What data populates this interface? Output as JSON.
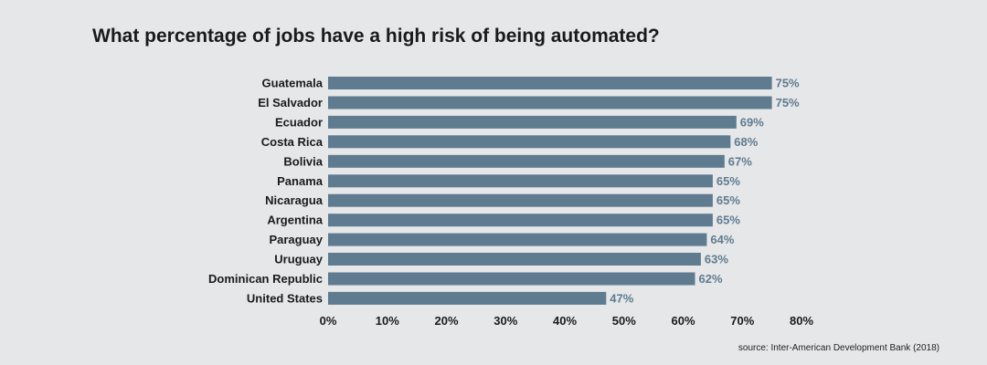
{
  "chart_data": {
    "type": "bar",
    "orientation": "horizontal",
    "title": "What percentage of jobs have a high risk of being automated?",
    "source": "source: Inter-American Development Bank (2018)",
    "categories": [
      "Guatemala",
      "El Salvador",
      "Ecuador",
      "Costa Rica",
      "Bolivia",
      "Panama",
      "Nicaragua",
      "Argentina",
      "Paraguay",
      "Uruguay",
      "Dominican Republic",
      "United States"
    ],
    "values": [
      75,
      75,
      69,
      68,
      67,
      65,
      65,
      65,
      64,
      63,
      62,
      47
    ],
    "value_labels": [
      "75%",
      "75%",
      "69%",
      "68%",
      "67%",
      "65%",
      "65%",
      "65%",
      "64%",
      "63%",
      "62%",
      "47%"
    ],
    "x_ticks": [
      0,
      10,
      20,
      30,
      40,
      50,
      60,
      70,
      80
    ],
    "x_tick_labels": [
      "0%",
      "10%",
      "20%",
      "30%",
      "40%",
      "50%",
      "60%",
      "70%",
      "80%"
    ],
    "xlim": [
      0,
      80
    ],
    "xlabel": "",
    "ylabel": "",
    "grid": false,
    "legend": "none",
    "bar_color": "#5e7b8f",
    "value_label_color": "#5e7b8f"
  }
}
